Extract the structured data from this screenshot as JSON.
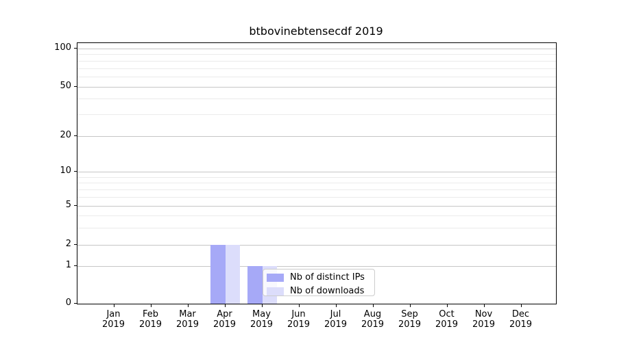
{
  "chart_data": {
    "type": "bar",
    "title": "btbovinebtensecdf 2019",
    "categories": [
      "Jan",
      "Feb",
      "Mar",
      "Apr",
      "May",
      "Jun",
      "Jul",
      "Aug",
      "Sep",
      "Oct",
      "Nov",
      "Dec"
    ],
    "year": "2019",
    "series": [
      {
        "name": "Nb of distinct IPs",
        "color": "#a6a9f7",
        "values": [
          0,
          0,
          0,
          2,
          1,
          0,
          0,
          0,
          0,
          0,
          0,
          0
        ]
      },
      {
        "name": "Nb of downloads",
        "color": "#dcddfb",
        "values": [
          0,
          0,
          0,
          2,
          1,
          0,
          0,
          0,
          0,
          0,
          0,
          0
        ]
      }
    ],
    "y_axis": {
      "scale": "symlog",
      "ticks": [
        0,
        1,
        2,
        5,
        10,
        20,
        50,
        100
      ],
      "minor_ticks": [
        3,
        4,
        6,
        7,
        8,
        9,
        30,
        40,
        60,
        70,
        80,
        90
      ],
      "range": [
        0,
        110
      ]
    },
    "grid": {
      "horizontal_major": true,
      "horizontal_minor": true,
      "vertical": false
    },
    "legend": {
      "position": "lower center"
    }
  }
}
